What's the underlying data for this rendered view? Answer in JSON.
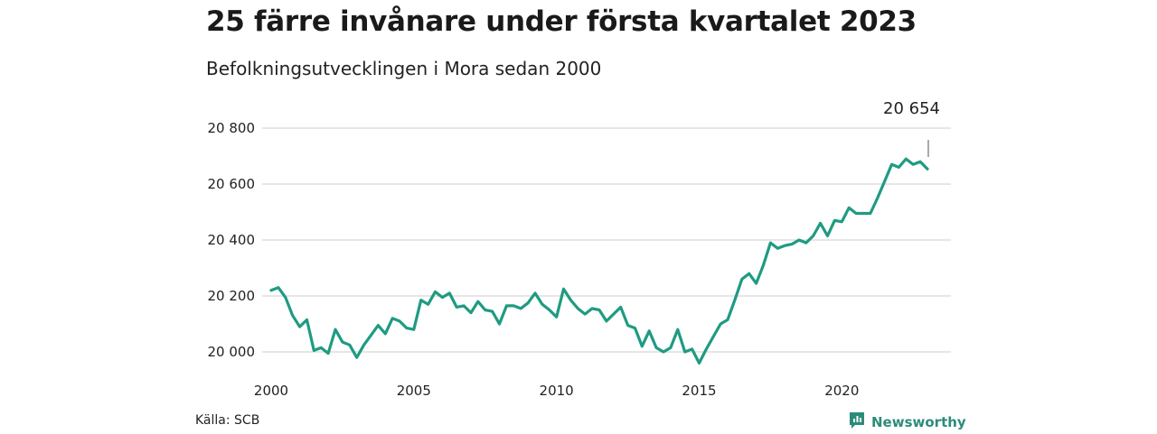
{
  "header": {
    "title": "25 färre invånare under första kvartalet 2023",
    "subtitle": "Befolkningsutvecklingen i Mora sedan 2000"
  },
  "footer": {
    "source": "Källa: SCB",
    "brand": "Newsworthy"
  },
  "colors": {
    "line": "#1f9b82",
    "grid": "#dddddd",
    "brand": "#2c8c7a"
  },
  "chart_data": {
    "type": "line",
    "title": "25 färre invånare under första kvartalet 2023",
    "subtitle": "Befolkningsutvecklingen i Mora sedan 2000",
    "xlabel": "",
    "ylabel": "",
    "xlim": [
      2000.0,
      2023.0
    ],
    "ylim": [
      19950,
      20850
    ],
    "y_ticks": [
      20000,
      20200,
      20400,
      20600,
      20800
    ],
    "y_tick_labels": [
      "20 000",
      "20 200",
      "20 400",
      "20 600",
      "20 800"
    ],
    "x_ticks": [
      2000,
      2005,
      2010,
      2015,
      2020
    ],
    "x_tick_labels": [
      "2000",
      "2005",
      "2010",
      "2015",
      "2020"
    ],
    "grid": true,
    "end_label": "20 654",
    "series": [
      {
        "x": [
          2000.0,
          2000.25,
          2000.5,
          2000.75,
          2001.0,
          2001.25,
          2001.5,
          2001.75,
          2002.0,
          2002.25,
          2002.5,
          2002.75,
          2003.0,
          2003.25,
          2003.5,
          2003.75,
          2004.0,
          2004.25,
          2004.5,
          2004.75,
          2005.0,
          2005.25,
          2005.5,
          2005.75,
          2006.0,
          2006.25,
          2006.5,
          2006.75,
          2007.0,
          2007.25,
          2007.5,
          2007.75,
          2008.0,
          2008.25,
          2008.5,
          2008.75,
          2009.0,
          2009.25,
          2009.5,
          2009.75,
          2010.0,
          2010.25,
          2010.5,
          2010.75,
          2011.0,
          2011.25,
          2011.5,
          2011.75,
          2012.0,
          2012.25,
          2012.5,
          2012.75,
          2013.0,
          2013.25,
          2013.5,
          2013.75,
          2014.0,
          2014.25,
          2014.5,
          2014.75,
          2015.0,
          2015.25,
          2015.5,
          2015.75,
          2016.0,
          2016.25,
          2016.5,
          2016.75,
          2017.0,
          2017.25,
          2017.5,
          2017.75,
          2018.0,
          2018.25,
          2018.5,
          2018.75,
          2019.0,
          2019.25,
          2019.5,
          2019.75,
          2020.0,
          2020.25,
          2020.5,
          2020.75,
          2021.0,
          2021.25,
          2021.5,
          2021.75,
          2022.0,
          2022.25,
          2022.5,
          2022.75,
          2023.0
        ],
        "values": [
          20220,
          20230,
          20195,
          20130,
          20090,
          20115,
          20005,
          20015,
          19995,
          20080,
          20035,
          20025,
          19980,
          20025,
          20060,
          20095,
          20065,
          20120,
          20110,
          20085,
          20080,
          20185,
          20170,
          20215,
          20195,
          20210,
          20160,
          20165,
          20140,
          20180,
          20150,
          20145,
          20100,
          20165,
          20165,
          20155,
          20175,
          20210,
          20170,
          20150,
          20125,
          20225,
          20185,
          20155,
          20135,
          20155,
          20150,
          20110,
          20135,
          20160,
          20095,
          20085,
          20020,
          20075,
          20015,
          20000,
          20015,
          20080,
          20000,
          20010,
          19960,
          20010,
          20055,
          20100,
          20115,
          20185,
          20260,
          20280,
          20245,
          20310,
          20390,
          20370,
          20380,
          20385,
          20400,
          20390,
          20415,
          20460,
          20415,
          20470,
          20465,
          20515,
          20495,
          20495,
          20495,
          20550,
          20610,
          20670,
          20660,
          20690,
          20670,
          20680,
          20654
        ]
      }
    ]
  }
}
